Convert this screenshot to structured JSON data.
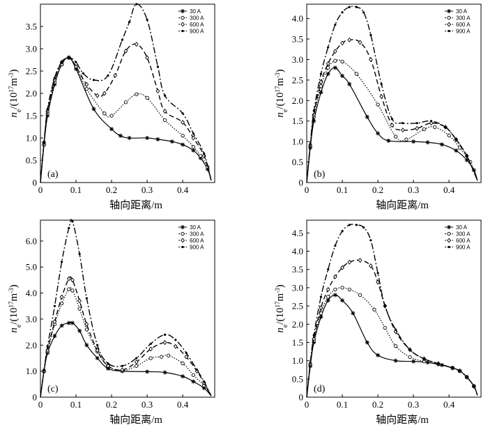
{
  "chart_data": [
    {
      "type": "line",
      "panel_label": "(a)",
      "xlabel": "轴向距离/m",
      "ylabel": "n_e/(10^17 m^-3)",
      "ylabel_parts": {
        "base": "n",
        "sub": "e",
        "pre": "/(10",
        "sup1": "17",
        "unit": "m",
        "sup2": "-3",
        "post": ")"
      },
      "xlim": [
        0,
        0.49
      ],
      "ylim": [
        0,
        4.0
      ],
      "xticks": [
        0,
        0.1,
        0.2,
        0.3,
        0.4
      ],
      "xtick_labels": [
        "0",
        "0.1",
        "0.2",
        "0.3",
        "0.4"
      ],
      "yticks": [
        0,
        0.5,
        1.0,
        1.5,
        2.0,
        2.5,
        3.0,
        3.5
      ],
      "ytick_labels": [
        "0",
        "0.5",
        "1.0",
        "1.5",
        "2.0",
        "2.5",
        "3.0",
        "3.5"
      ],
      "legend": [
        "30 A",
        "300 A",
        "600 A",
        "900 A"
      ],
      "series": [
        {
          "name": "30 A",
          "x": [
            0,
            0.01,
            0.02,
            0.04,
            0.06,
            0.08,
            0.1,
            0.15,
            0.2,
            0.225,
            0.25,
            0.3,
            0.33,
            0.37,
            0.4,
            0.43,
            0.45,
            0.47,
            0.48
          ],
          "y": [
            0,
            0.85,
            1.5,
            2.2,
            2.65,
            2.8,
            2.55,
            1.65,
            1.2,
            1.05,
            1.0,
            1.0,
            0.97,
            0.92,
            0.85,
            0.72,
            0.55,
            0.3,
            0.05
          ]
        },
        {
          "name": "300 A",
          "x": [
            0,
            0.01,
            0.02,
            0.04,
            0.06,
            0.08,
            0.1,
            0.13,
            0.18,
            0.2,
            0.24,
            0.27,
            0.3,
            0.35,
            0.4,
            0.43,
            0.45,
            0.47,
            0.48
          ],
          "y": [
            0,
            0.85,
            1.55,
            2.25,
            2.65,
            2.8,
            2.6,
            2.1,
            1.55,
            1.5,
            1.8,
            1.98,
            1.9,
            1.4,
            1.05,
            0.8,
            0.6,
            0.35,
            0.05
          ]
        },
        {
          "name": "600 A",
          "x": [
            0,
            0.01,
            0.02,
            0.04,
            0.06,
            0.08,
            0.1,
            0.13,
            0.16,
            0.18,
            0.21,
            0.24,
            0.27,
            0.3,
            0.33,
            0.35,
            0.4,
            0.43,
            0.46,
            0.48
          ],
          "y": [
            0,
            0.9,
            1.6,
            2.3,
            2.7,
            2.8,
            2.6,
            2.2,
            1.95,
            2.0,
            2.4,
            2.95,
            3.1,
            2.8,
            2.05,
            1.6,
            1.35,
            1.0,
            0.6,
            0.05
          ]
        },
        {
          "name": "900 A",
          "x": [
            0,
            0.01,
            0.02,
            0.04,
            0.06,
            0.08,
            0.1,
            0.12,
            0.15,
            0.19,
            0.23,
            0.25,
            0.27,
            0.3,
            0.33,
            0.35,
            0.4,
            0.43,
            0.46,
            0.48
          ],
          "y": [
            0,
            0.9,
            1.65,
            2.35,
            2.7,
            2.8,
            2.7,
            2.45,
            2.3,
            2.4,
            3.2,
            3.6,
            4.0,
            3.65,
            2.6,
            1.95,
            1.55,
            1.1,
            0.65,
            0.05
          ]
        }
      ]
    },
    {
      "type": "line",
      "panel_label": "(b)",
      "xlabel": "轴向距离/m",
      "ylabel": "n_e/(10^17 m^-3)",
      "ylabel_parts": {
        "base": "n",
        "sub": "e",
        "pre": "/(10",
        "sup1": "17",
        "unit": "m",
        "sup2": "-3",
        "post": ")"
      },
      "xlim": [
        0,
        0.49
      ],
      "ylim": [
        0,
        4.35
      ],
      "xticks": [
        0,
        0.1,
        0.2,
        0.3,
        0.4
      ],
      "xtick_labels": [
        "0",
        "0.1",
        "0.2",
        "0.3",
        "0.4"
      ],
      "yticks": [
        0,
        0.5,
        1.0,
        1.5,
        2.0,
        2.5,
        3.0,
        3.5,
        4.0
      ],
      "ytick_labels": [
        "0",
        "0.5",
        "1.0",
        "1.5",
        "2.0",
        "2.5",
        "3.0",
        "3.5",
        "4.0"
      ],
      "legend": [
        "30 A",
        "300 A",
        "600 A",
        "900 A"
      ],
      "series": [
        {
          "name": "30 A",
          "x": [
            0,
            0.01,
            0.02,
            0.04,
            0.06,
            0.08,
            0.1,
            0.12,
            0.17,
            0.2,
            0.23,
            0.3,
            0.34,
            0.38,
            0.42,
            0.45,
            0.47,
            0.48
          ],
          "y": [
            0,
            0.85,
            1.5,
            2.2,
            2.65,
            2.8,
            2.6,
            2.4,
            1.6,
            1.2,
            1.02,
            1.0,
            0.98,
            0.93,
            0.78,
            0.55,
            0.3,
            0.05
          ]
        },
        {
          "name": "300 A",
          "x": [
            0,
            0.01,
            0.02,
            0.04,
            0.06,
            0.08,
            0.1,
            0.14,
            0.2,
            0.25,
            0.28,
            0.33,
            0.36,
            0.4,
            0.43,
            0.46,
            0.48
          ],
          "y": [
            0,
            0.9,
            1.6,
            2.35,
            2.8,
            2.97,
            2.95,
            2.65,
            1.9,
            1.12,
            1.05,
            1.3,
            1.35,
            1.15,
            0.85,
            0.5,
            0.05
          ]
        },
        {
          "name": "600 A",
          "x": [
            0,
            0.01,
            0.02,
            0.04,
            0.06,
            0.08,
            0.1,
            0.12,
            0.15,
            0.18,
            0.21,
            0.24,
            0.27,
            0.31,
            0.35,
            0.39,
            0.42,
            0.45,
            0.48
          ],
          "y": [
            0,
            0.9,
            1.65,
            2.45,
            2.9,
            3.2,
            3.4,
            3.48,
            3.42,
            3.0,
            2.1,
            1.4,
            1.28,
            1.32,
            1.45,
            1.35,
            1.05,
            0.65,
            0.05
          ]
        },
        {
          "name": "900 A",
          "x": [
            0,
            0.01,
            0.02,
            0.04,
            0.06,
            0.08,
            0.1,
            0.12,
            0.14,
            0.16,
            0.18,
            0.21,
            0.24,
            0.27,
            0.31,
            0.35,
            0.39,
            0.42,
            0.45,
            0.48
          ],
          "y": [
            0,
            0.95,
            1.75,
            2.65,
            3.3,
            3.85,
            4.15,
            4.28,
            4.28,
            4.15,
            3.6,
            2.4,
            1.55,
            1.45,
            1.45,
            1.5,
            1.35,
            1.05,
            0.65,
            0.05
          ]
        }
      ]
    },
    {
      "type": "line",
      "panel_label": "(c)",
      "xlabel": "轴向距离/m",
      "ylabel": "n_e/(10^17 m^-3)",
      "ylabel_parts": {
        "base": "n",
        "sub": "e",
        "pre": "/(10",
        "sup1": "17",
        "unit": "m",
        "sup2": "-3",
        "post": ")"
      },
      "xlim": [
        0,
        0.49
      ],
      "ylim": [
        0,
        6.8
      ],
      "xticks": [
        0,
        0.1,
        0.2,
        0.3,
        0.4
      ],
      "xtick_labels": [
        "0",
        "0.1",
        "0.2",
        "0.3",
        "0.4"
      ],
      "yticks": [
        0,
        1.0,
        2.0,
        3.0,
        4.0,
        5.0,
        6.0
      ],
      "ytick_labels": [
        "0",
        "1.0",
        "2.0",
        "3.0",
        "4.0",
        "5.0",
        "6.0"
      ],
      "legend": [
        "30 A",
        "300 A",
        "600 A",
        "900 A"
      ],
      "series": [
        {
          "name": "30 A",
          "x": [
            0,
            0.01,
            0.02,
            0.04,
            0.06,
            0.08,
            0.09,
            0.11,
            0.13,
            0.16,
            0.19,
            0.23,
            0.3,
            0.35,
            0.4,
            0.43,
            0.46,
            0.48
          ],
          "y": [
            0,
            1.0,
            1.7,
            2.35,
            2.75,
            2.85,
            2.85,
            2.55,
            2.0,
            1.5,
            1.1,
            1.0,
            0.98,
            0.95,
            0.8,
            0.6,
            0.35,
            0.05
          ]
        },
        {
          "name": "300 A",
          "x": [
            0,
            0.01,
            0.02,
            0.04,
            0.06,
            0.08,
            0.09,
            0.11,
            0.13,
            0.16,
            0.19,
            0.23,
            0.27,
            0.31,
            0.34,
            0.36,
            0.4,
            0.43,
            0.46,
            0.48
          ],
          "y": [
            0,
            1.0,
            1.75,
            2.8,
            3.6,
            4.15,
            4.1,
            3.4,
            2.6,
            1.75,
            1.2,
            1.02,
            1.2,
            1.5,
            1.55,
            1.6,
            1.3,
            0.85,
            0.45,
            0.05
          ]
        },
        {
          "name": "600 A",
          "x": [
            0,
            0.01,
            0.02,
            0.04,
            0.06,
            0.08,
            0.09,
            0.11,
            0.13,
            0.16,
            0.19,
            0.23,
            0.27,
            0.31,
            0.35,
            0.38,
            0.41,
            0.44,
            0.46,
            0.48
          ],
          "y": [
            0,
            1.0,
            1.8,
            2.9,
            3.85,
            4.55,
            4.5,
            3.7,
            2.8,
            1.8,
            1.2,
            1.05,
            1.35,
            1.85,
            2.1,
            1.95,
            1.55,
            1.0,
            0.55,
            0.05
          ]
        },
        {
          "name": "900 A",
          "x": [
            0,
            0.01,
            0.02,
            0.04,
            0.06,
            0.08,
            0.09,
            0.11,
            0.13,
            0.16,
            0.19,
            0.23,
            0.27,
            0.31,
            0.35,
            0.38,
            0.41,
            0.44,
            0.46,
            0.48
          ],
          "y": [
            0,
            1.05,
            1.95,
            3.5,
            5.2,
            6.5,
            6.75,
            5.5,
            3.8,
            2.0,
            1.3,
            1.2,
            1.5,
            2.05,
            2.4,
            2.2,
            1.7,
            1.05,
            0.6,
            0.05
          ]
        }
      ]
    },
    {
      "type": "line",
      "panel_label": "(d)",
      "xlabel": "轴向距离/m",
      "ylabel": "n_e/(10^17 m^-3)",
      "ylabel_parts": {
        "base": "n",
        "sub": "e",
        "pre": "/(10",
        "sup1": "17",
        "unit": "m",
        "sup2": "-3",
        "post": ")"
      },
      "xlim": [
        0,
        0.49
      ],
      "ylim": [
        0,
        4.85
      ],
      "xticks": [
        0,
        0.1,
        0.2,
        0.3,
        0.4
      ],
      "xtick_labels": [
        "0",
        "0.1",
        "0.2",
        "0.3",
        "0.4"
      ],
      "yticks": [
        0,
        0.5,
        1.0,
        1.5,
        2.0,
        2.5,
        3.0,
        3.5,
        4.0,
        4.5
      ],
      "ytick_labels": [
        "0",
        "0.5",
        "1.0",
        "1.5",
        "2.0",
        "2.5",
        "3.0",
        "3.5",
        "4.0",
        "4.5"
      ],
      "legend": [
        "30 A",
        "300 A",
        "600 A",
        "900 A"
      ],
      "series": [
        {
          "name": "30 A",
          "x": [
            0,
            0.01,
            0.02,
            0.04,
            0.06,
            0.08,
            0.1,
            0.13,
            0.17,
            0.2,
            0.25,
            0.3,
            0.34,
            0.38,
            0.41,
            0.43,
            0.45,
            0.47,
            0.48
          ],
          "y": [
            0,
            0.85,
            1.5,
            2.2,
            2.65,
            2.8,
            2.65,
            2.3,
            1.5,
            1.15,
            1.0,
            0.98,
            0.95,
            0.88,
            0.8,
            0.72,
            0.55,
            0.3,
            0.05
          ]
        },
        {
          "name": "300 A",
          "x": [
            0,
            0.01,
            0.02,
            0.04,
            0.06,
            0.08,
            0.1,
            0.12,
            0.15,
            0.19,
            0.22,
            0.25,
            0.29,
            0.33,
            0.37,
            0.41,
            0.43,
            0.45,
            0.47,
            0.48
          ],
          "y": [
            0,
            0.9,
            1.55,
            2.3,
            2.75,
            2.95,
            3.0,
            2.95,
            2.8,
            2.4,
            1.9,
            1.4,
            1.1,
            0.98,
            0.9,
            0.8,
            0.72,
            0.55,
            0.3,
            0.05
          ]
        },
        {
          "name": "600 A",
          "x": [
            0,
            0.01,
            0.02,
            0.04,
            0.06,
            0.08,
            0.1,
            0.12,
            0.15,
            0.18,
            0.2,
            0.22,
            0.25,
            0.29,
            0.33,
            0.37,
            0.41,
            0.43,
            0.45,
            0.47,
            0.48
          ],
          "y": [
            0,
            0.9,
            1.6,
            2.45,
            2.95,
            3.3,
            3.55,
            3.7,
            3.75,
            3.6,
            3.15,
            2.5,
            1.8,
            1.3,
            1.05,
            0.92,
            0.8,
            0.72,
            0.55,
            0.3,
            0.05
          ]
        },
        {
          "name": "900 A",
          "x": [
            0,
            0.01,
            0.02,
            0.04,
            0.06,
            0.08,
            0.1,
            0.12,
            0.14,
            0.16,
            0.18,
            0.2,
            0.22,
            0.25,
            0.29,
            0.33,
            0.37,
            0.41,
            0.43,
            0.45,
            0.47,
            0.48
          ],
          "y": [
            0,
            0.95,
            1.7,
            2.75,
            3.5,
            4.15,
            4.55,
            4.72,
            4.72,
            4.65,
            4.3,
            3.4,
            2.5,
            1.85,
            1.3,
            1.05,
            0.92,
            0.8,
            0.72,
            0.55,
            0.3,
            0.05
          ]
        }
      ]
    }
  ]
}
